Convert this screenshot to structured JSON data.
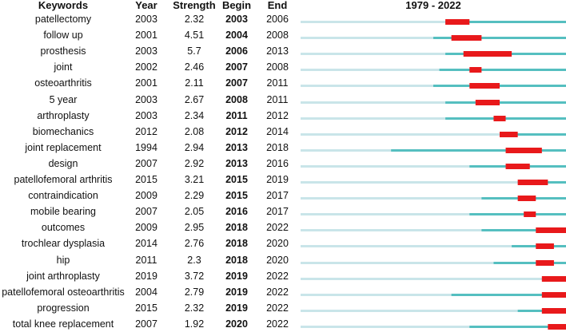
{
  "headers": {
    "keywords": "Keywords",
    "year": "Year",
    "strength": "Strength",
    "begin": "Begin",
    "end": "End",
    "range": "1979 - 2022"
  },
  "colors": {
    "light": "#c9e5e9",
    "teal": "#55bfc0",
    "burst": "#e8191b"
  },
  "chart_data": {
    "type": "table",
    "timeline": [
      1979,
      2022
    ],
    "columns": [
      "Keywords",
      "Year",
      "Strength",
      "Begin",
      "End"
    ],
    "rows": [
      {
        "keyword": "patellectomy",
        "year": "2003",
        "strength": "2.32",
        "begin": "2003",
        "end": "2006"
      },
      {
        "keyword": "follow up",
        "year": "2001",
        "strength": "4.51",
        "begin": "2004",
        "end": "2008"
      },
      {
        "keyword": "prosthesis",
        "year": "2003",
        "strength": "5.7",
        "begin": "2006",
        "end": "2013"
      },
      {
        "keyword": "joint",
        "year": "2002",
        "strength": "2.46",
        "begin": "2007",
        "end": "2008"
      },
      {
        "keyword": "osteoarthritis",
        "year": "2001",
        "strength": "2.11",
        "begin": "2007",
        "end": "2011"
      },
      {
        "keyword": "5 year",
        "year": "2003",
        "strength": "2.67",
        "begin": "2008",
        "end": "2011"
      },
      {
        "keyword": "arthroplasty",
        "year": "2003",
        "strength": "2.34",
        "begin": "2011",
        "end": "2012"
      },
      {
        "keyword": "biomechanics",
        "year": "2012",
        "strength": "2.08",
        "begin": "2012",
        "end": "2014"
      },
      {
        "keyword": "joint replacement",
        "year": "1994",
        "strength": "2.94",
        "begin": "2013",
        "end": "2018"
      },
      {
        "keyword": "design",
        "year": "2007",
        "strength": "2.92",
        "begin": "2013",
        "end": "2016"
      },
      {
        "keyword": "patellofemoral arthritis",
        "year": "2015",
        "strength": "3.21",
        "begin": "2015",
        "end": "2019"
      },
      {
        "keyword": "contraindication",
        "year": "2009",
        "strength": "2.29",
        "begin": "2015",
        "end": "2017"
      },
      {
        "keyword": "mobile bearing",
        "year": "2007",
        "strength": "2.05",
        "begin": "2016",
        "end": "2017"
      },
      {
        "keyword": "outcomes",
        "year": "2009",
        "strength": "2.95",
        "begin": "2018",
        "end": "2022"
      },
      {
        "keyword": "trochlear dysplasia",
        "year": "2014",
        "strength": "2.76",
        "begin": "2018",
        "end": "2020"
      },
      {
        "keyword": "hip",
        "year": "2011",
        "strength": "2.3",
        "begin": "2018",
        "end": "2020"
      },
      {
        "keyword": "joint arthroplasty",
        "year": "2019",
        "strength": "3.72",
        "begin": "2019",
        "end": "2022"
      },
      {
        "keyword": "patellofemoral osteoarthritis",
        "year": "2004",
        "strength": "2.79",
        "begin": "2019",
        "end": "2022"
      },
      {
        "keyword": "progression",
        "year": "2015",
        "strength": "2.32",
        "begin": "2019",
        "end": "2022"
      },
      {
        "keyword": "total knee replacement",
        "year": "2007",
        "strength": "1.92",
        "begin": "2020",
        "end": "2022"
      }
    ]
  }
}
